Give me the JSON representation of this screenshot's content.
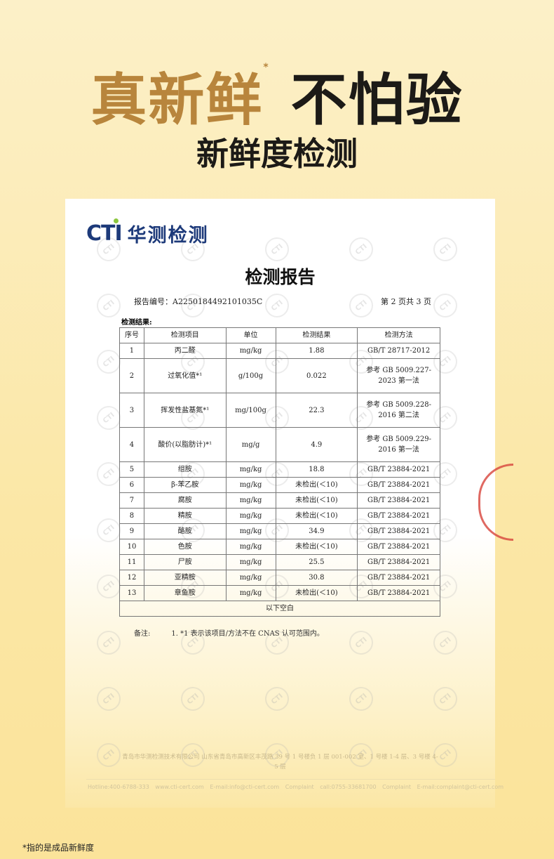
{
  "headline": {
    "gold": "真新鲜",
    "asterisk": "*",
    "dark": "不怕验"
  },
  "subheadline": "新鲜度检测",
  "report": {
    "logo": {
      "cti": "CTI",
      "cn": "华测检测"
    },
    "title": "检测报告",
    "report_no": "报告编号：A2250184492101035C",
    "page": "第 2 页共 3 页",
    "section": "检测结果:",
    "columns": [
      "序号",
      "检测项目",
      "单位",
      "检测结果",
      "检测方法"
    ],
    "rows": [
      [
        "1",
        "丙二醛",
        "mg/kg",
        "1.88",
        "GB/T 28717-2012"
      ],
      [
        "2",
        "过氧化值*¹",
        "g/100g",
        "0.022",
        "参考 GB 5009.227-2023 第一法"
      ],
      [
        "3",
        "挥发性盐基氮*¹",
        "mg/100g",
        "22.3",
        "参考 GB 5009.228-2016 第二法"
      ],
      [
        "4",
        "酸价(以脂肪计)*¹",
        "mg/g",
        "4.9",
        "参考 GB 5009.229-2016 第一法"
      ],
      [
        "5",
        "组胺",
        "mg/kg",
        "18.8",
        "GB/T 23884-2021"
      ],
      [
        "6",
        "β-苯乙胺",
        "mg/kg",
        "未检出(＜10)",
        "GB/T 23884-2021"
      ],
      [
        "7",
        "腐胺",
        "mg/kg",
        "未检出(＜10)",
        "GB/T 23884-2021"
      ],
      [
        "8",
        "精胺",
        "mg/kg",
        "未检出(＜10)",
        "GB/T 23884-2021"
      ],
      [
        "9",
        "酪胺",
        "mg/kg",
        "34.9",
        "GB/T 23884-2021"
      ],
      [
        "10",
        "色胺",
        "mg/kg",
        "未检出(＜10)",
        "GB/T 23884-2021"
      ],
      [
        "11",
        "尸胺",
        "mg/kg",
        "25.5",
        "GB/T 23884-2021"
      ],
      [
        "12",
        "亚精胺",
        "mg/kg",
        "30.8",
        "GB/T 23884-2021"
      ],
      [
        "13",
        "章鱼胺",
        "mg/kg",
        "未检出(＜10)",
        "GB/T 23884-2021"
      ]
    ],
    "blank_row": "以下空白",
    "note_label": "备注:",
    "note": "1. *1 表示该项目/方法不在 CNAS 认可范围内。",
    "address": "青岛市华测检测技术有限公司 山东省青岛市高新区丰茂路 39 号 1 号楼负 1 层 001-002 室、1 号楼 1-4 层、3 号楼 4-5 层",
    "contact": "Hotline:400-6788-333   www.cti-cert.com   E-mail:info@cti-cert.com   Complaint call:0755-33681700   Complaint E-mail:complaint@cti-cert.com",
    "watermark": "CTI"
  },
  "footnote": "*指的是成品新鲜度",
  "colors": {
    "gold": "#b8853c",
    "brand_blue": "#1d3a7a",
    "stamp_red": "#d8443c"
  }
}
